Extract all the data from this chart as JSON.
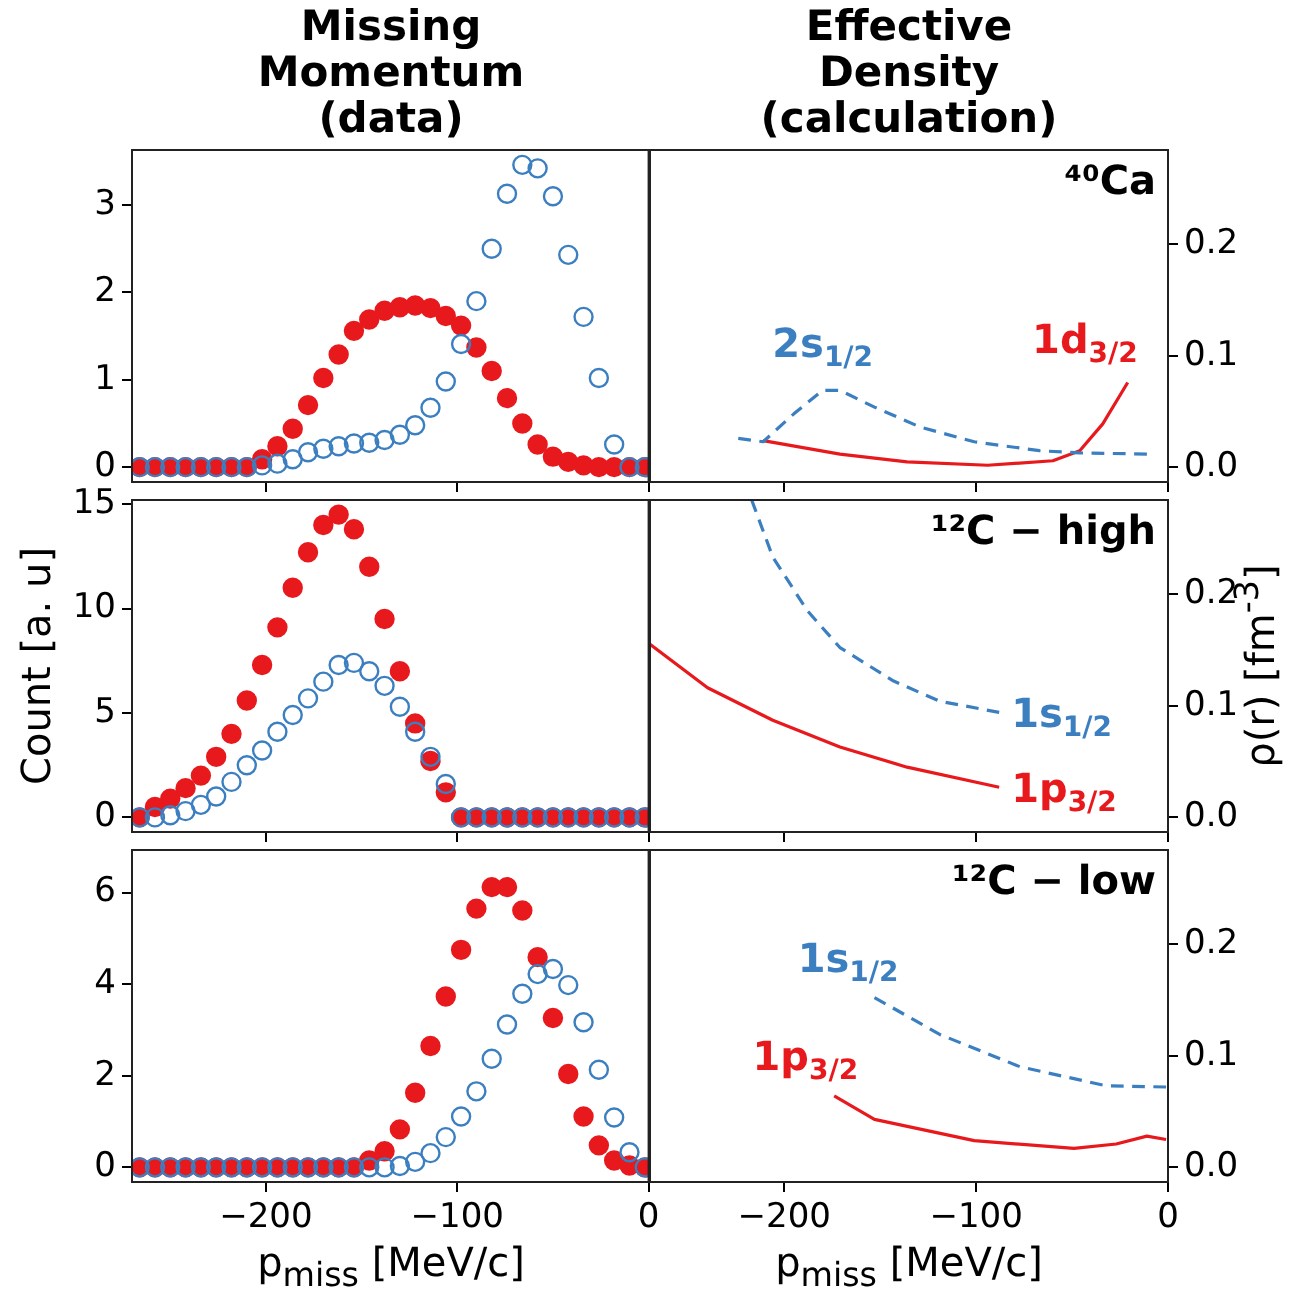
{
  "chart_data": [
    {
      "type": "scatter",
      "title": "Missing Momentum (data)",
      "x": [
        -266,
        -258,
        -250,
        -242,
        -234,
        -226,
        -218,
        -210,
        -202,
        -194,
        -186,
        -178,
        -170,
        -162,
        -154,
        -146,
        -138,
        -130,
        -122,
        -114,
        -106,
        -98,
        -90,
        -82,
        -74,
        -66,
        -58,
        -50,
        -42,
        -34,
        -26,
        -18,
        -10,
        -2
      ],
      "xlim": [
        -270,
        0
      ],
      "xticks": [
        {
          "value": -200,
          "label": null
        },
        {
          "value": -100,
          "label": null
        },
        {
          "value": 0,
          "label": null
        }
      ],
      "ylim": [
        -0.17,
        3.63
      ],
      "yticks": [
        0,
        1,
        2,
        3
      ],
      "tick_labels": "y",
      "marker": "circle",
      "grid": false,
      "series": [
        {
          "color": "#e8191d",
          "values": [
            0,
            0,
            0,
            0,
            0,
            0,
            0,
            0,
            0.09,
            0.24,
            0.44,
            0.71,
            1.02,
            1.29,
            1.56,
            1.69,
            1.79,
            1.83,
            1.85,
            1.82,
            1.73,
            1.62,
            1.37,
            1.1,
            0.79,
            0.5,
            0.26,
            0.12,
            0.06,
            0.02,
            0,
            0,
            0,
            0
          ]
        },
        {
          "color": "#3b7fc0",
          "values": [
            0,
            0,
            0,
            0,
            0,
            0,
            0,
            0,
            0.02,
            0.04,
            0.09,
            0.17,
            0.21,
            0.24,
            0.27,
            0.28,
            0.31,
            0.37,
            0.48,
            0.68,
            0.98,
            1.41,
            1.9,
            2.5,
            3.13,
            3.46,
            3.42,
            3.1,
            2.43,
            1.72,
            1.02,
            0.26,
            0,
            0
          ]
        }
      ]
    },
    {
      "type": "line",
      "title": "Effective Density (calculation)",
      "annotations": [
        "⁴⁰Ca",
        {
          "text": "2s$_{1/2}$",
          "x": -180,
          "y": 0.069
        },
        {
          "text": "1d$_{3/2}$",
          "x": -21,
          "y": 0.076
        }
      ],
      "xlim": [
        -270,
        0
      ],
      "xticks": [
        {
          "value": -200,
          "label": null
        },
        {
          "value": -100,
          "label": null
        },
        {
          "value": 0,
          "label": null
        }
      ],
      "ylim": [
        -0.013,
        0.284
      ],
      "yticks": [
        {
          "value": 0,
          "label": "0.0"
        },
        {
          "value": 0.1,
          "label": "0.1"
        },
        {
          "value": 0.2,
          "label": "0.2"
        }
      ],
      "tick_labels": "y",
      "grid": false,
      "series": [
        {
          "color": "#e8191d",
          "line_style": "solid",
          "x": [
            -211,
            -171,
            -136,
            -94,
            -60,
            -46,
            -34,
            -21
          ],
          "values": [
            0.024,
            0.012,
            0.005,
            0.002,
            0.006,
            0.015,
            0.039,
            0.076
          ]
        },
        {
          "color": "#3b7fc0",
          "line_style": "dashed",
          "x": [
            -224,
            -211,
            -195,
            -180,
            -171,
            -153,
            -129,
            -101,
            -67,
            -46,
            -11
          ],
          "values": [
            0.026,
            0.023,
            0.048,
            0.069,
            0.069,
            0.054,
            0.036,
            0.023,
            0.015,
            0.013,
            0.012
          ]
        }
      ]
    },
    {
      "type": "scatter",
      "ylabel": "Count [a. u]",
      "x": [
        -266,
        -258,
        -250,
        -242,
        -234,
        -226,
        -218,
        -210,
        -202,
        -194,
        -186,
        -178,
        -170,
        -162,
        -154,
        -146,
        -138,
        -130,
        -122,
        -114,
        -106,
        -98,
        -90,
        -82,
        -74,
        -66,
        -58,
        -50,
        -42,
        -34,
        -26,
        -18,
        -10,
        -2
      ],
      "xlim": [
        -270,
        0
      ],
      "xticks": [
        {
          "value": -200,
          "label": null
        },
        {
          "value": -100,
          "label": null
        },
        {
          "value": 0,
          "label": null
        }
      ],
      "ylim": [
        -0.7,
        15.2
      ],
      "yticks": [
        0,
        5,
        10,
        15
      ],
      "tick_labels": "y",
      "marker": "circle",
      "grid": false,
      "series": [
        {
          "color": "#e8191d",
          "values": [
            0,
            0.5,
            0.9,
            1.4,
            2.0,
            2.9,
            4.0,
            5.6,
            7.3,
            9.1,
            11.0,
            12.7,
            14.0,
            14.5,
            13.8,
            12.0,
            9.5,
            7.0,
            4.5,
            2.7,
            1.2,
            0,
            0,
            0,
            0,
            0,
            0,
            0,
            0,
            0,
            0,
            0,
            0,
            0
          ]
        },
        {
          "color": "#3b7fc0",
          "values": [
            0,
            0,
            0.1,
            0.3,
            0.6,
            1.0,
            1.7,
            2.5,
            3.2,
            4.1,
            4.9,
            5.7,
            6.5,
            7.3,
            7.4,
            7.0,
            6.3,
            5.3,
            4.1,
            2.9,
            1.6,
            0,
            0,
            0,
            0,
            0,
            0,
            0,
            0,
            0,
            0,
            0,
            0,
            0
          ]
        }
      ]
    },
    {
      "type": "line",
      "ylabel": "ρ(r) [fm$^{-3}$]",
      "annotations": [
        "¹²C − high",
        {
          "text": "1s$_{1/2}$",
          "x": -88,
          "y": 0.094
        },
        {
          "text": "1p$_{3/2}$",
          "x": -88,
          "y": 0.027
        }
      ],
      "xlim": [
        -270,
        0
      ],
      "xticks": [
        {
          "value": -200,
          "label": null
        },
        {
          "value": -100,
          "label": null
        },
        {
          "value": 0,
          "label": null
        }
      ],
      "ylim": [
        -0.013,
        0.284
      ],
      "yticks": [
        {
          "value": 0,
          "label": "0.0"
        },
        {
          "value": 0.1,
          "label": "0.1"
        },
        {
          "value": 0.2,
          "label": "0.2"
        }
      ],
      "tick_labels": "y",
      "grid": false,
      "series": [
        {
          "color": "#e8191d",
          "line_style": "solid",
          "x": [
            -270,
            -240,
            -206,
            -171,
            -136,
            -88
          ],
          "values": [
            0.155,
            0.116,
            0.087,
            0.063,
            0.045,
            0.027
          ]
        },
        {
          "color": "#3b7fc0",
          "line_style": "dashed",
          "x": [
            -217,
            -206,
            -188,
            -171,
            -143,
            -119,
            -88
          ],
          "values": [
            0.284,
            0.233,
            0.185,
            0.152,
            0.122,
            0.104,
            0.094
          ]
        }
      ]
    },
    {
      "type": "scatter",
      "xlabel": "p$_{miss}$ [MeV/c]",
      "x": [
        -266,
        -258,
        -250,
        -242,
        -234,
        -226,
        -218,
        -210,
        -202,
        -194,
        -186,
        -178,
        -170,
        -162,
        -154,
        -146,
        -138,
        -130,
        -122,
        -114,
        -106,
        -98,
        -90,
        -82,
        -74,
        -66,
        -58,
        -50,
        -42,
        -34,
        -26,
        -18,
        -10,
        -2
      ],
      "xlim": [
        -270,
        0
      ],
      "xticks": [
        {
          "value": -200,
          "label": "−200"
        },
        {
          "value": -100,
          "label": "−100"
        },
        {
          "value": 0,
          "label": "0"
        }
      ],
      "ylim": [
        -0.32,
        6.93
      ],
      "yticks": [
        0,
        2,
        4,
        6
      ],
      "marker": "circle",
      "grid": false,
      "series": [
        {
          "color": "#e8191d",
          "values": [
            0,
            0,
            0,
            0,
            0,
            0,
            0,
            0,
            0,
            0,
            0,
            0,
            0,
            0,
            0,
            0.15,
            0.35,
            0.83,
            1.63,
            2.65,
            3.73,
            4.75,
            5.65,
            6.12,
            6.12,
            5.61,
            4.59,
            3.26,
            2.04,
            1.11,
            0.48,
            0.15,
            0.04,
            0
          ]
        },
        {
          "color": "#3b7fc0",
          "values": [
            0,
            0,
            0,
            0,
            0,
            0,
            0,
            0,
            0,
            0,
            0,
            0,
            0,
            0,
            0,
            0,
            0,
            0.03,
            0.12,
            0.31,
            0.66,
            1.11,
            1.66,
            2.37,
            3.12,
            3.79,
            4.22,
            4.33,
            3.98,
            3.17,
            2.13,
            1.09,
            0.33,
            0
          ]
        }
      ]
    },
    {
      "type": "line",
      "xlabel": "p$_{miss}$ [MeV/c]",
      "annotations": [
        "¹²C − low",
        {
          "text": "1s$_{1/2}$",
          "x": -153,
          "y": 0.152
        },
        {
          "text": "1p$_{3/2}$",
          "x": -174,
          "y": 0.064
        }
      ],
      "xlim": [
        -270,
        0
      ],
      "xticks": [
        {
          "value": -200,
          "label": "−200"
        },
        {
          "value": -100,
          "label": "−100"
        },
        {
          "value": 0,
          "label": "0"
        }
      ],
      "ylim": [
        -0.013,
        0.284
      ],
      "yticks": [
        {
          "value": 0,
          "label": "0.0"
        },
        {
          "value": 0.1,
          "label": "0.1"
        },
        {
          "value": 0.2,
          "label": "0.2"
        }
      ],
      "grid": false,
      "series": [
        {
          "color": "#e8191d",
          "line_style": "solid",
          "x": [
            -174,
            -153,
            -101,
            -49,
            -27,
            -11,
            -1
          ],
          "values": [
            0.064,
            0.043,
            0.024,
            0.017,
            0.021,
            0.028,
            0.025
          ]
        },
        {
          "color": "#3b7fc0",
          "line_style": "dashed",
          "x": [
            -153,
            -119,
            -77,
            -32,
            -1
          ],
          "values": [
            0.152,
            0.119,
            0.09,
            0.073,
            0.072
          ]
        }
      ]
    }
  ]
}
